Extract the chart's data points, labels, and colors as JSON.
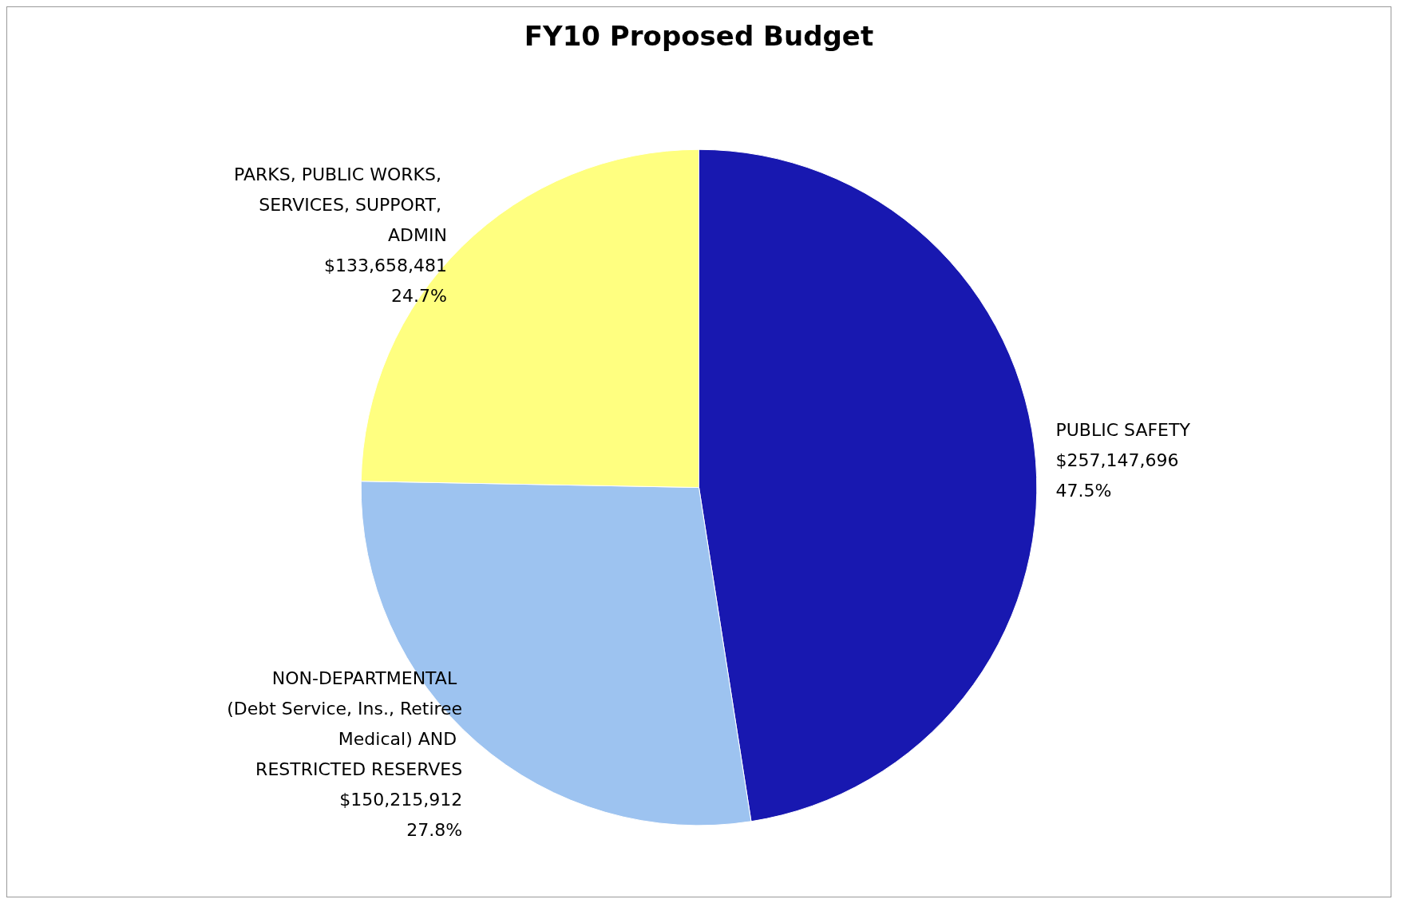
{
  "chart_data": {
    "type": "pie",
    "title": "FY10 Proposed Budget",
    "categories": [
      "PUBLIC SAFETY",
      "NON-DEPARTMENTAL (Debt Service, Ins., Retiree Medical) AND RESTRICTED RESERVES",
      "PARKS, PUBLIC WORKS, SERVICES, SUPPORT, ADMIN"
    ],
    "values": [
      257147696,
      150215912,
      133658481
    ],
    "colors": [
      "#1818b0",
      "#9dc3f0",
      "#ffff80"
    ],
    "value_labels": [
      "$257,147,696\n47.5%",
      "$150,215,912\n27.8%",
      "$133,658,481\n24.7%"
    ],
    "legend": false
  }
}
